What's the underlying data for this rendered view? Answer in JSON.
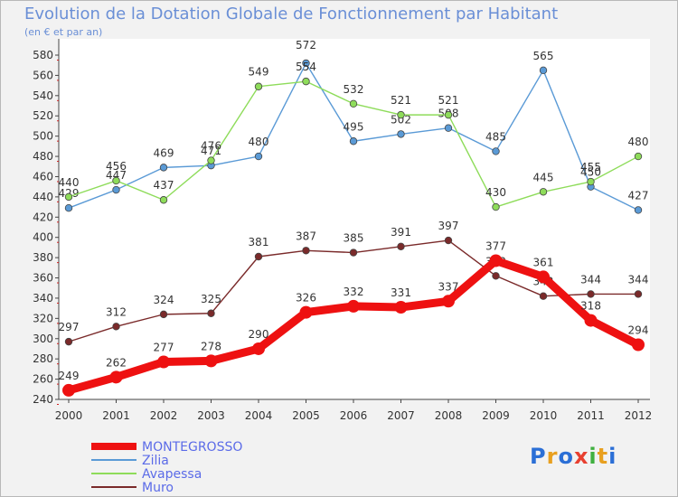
{
  "title": "Evolution de la Dotation Globale de Fonctionnement par Habitant",
  "subtitle": "(en € et par an)",
  "logo": {
    "text": "Proxiti",
    "letters": [
      "P",
      "r",
      "o",
      "x",
      "i",
      "t",
      "i"
    ],
    "colors": [
      "#2b6fd6",
      "#e8a020",
      "#2b6fd6",
      "#e84030",
      "#40b040",
      "#e8a020",
      "#2b6fd6"
    ]
  },
  "chart_data": {
    "type": "line",
    "x": [
      "2000",
      "2001",
      "2002",
      "2003",
      "2004",
      "2005",
      "2006",
      "2007",
      "2008",
      "2009",
      "2010",
      "2011",
      "2012"
    ],
    "ylim": [
      240,
      580
    ],
    "yticks": [
      240,
      260,
      280,
      300,
      320,
      340,
      360,
      380,
      400,
      420,
      440,
      460,
      480,
      500,
      520,
      540,
      560,
      580
    ],
    "grid": false,
    "legend_position": "bottom-left",
    "series": [
      {
        "name": "MONTEGROSSO",
        "color": "#ee1111",
        "values": [
          249,
          262,
          277,
          278,
          290,
          326,
          332,
          331,
          337,
          377,
          361,
          318,
          294
        ]
      },
      {
        "name": "Zilia",
        "color": "#5a9ad6",
        "values": [
          429,
          447,
          469,
          471,
          480,
          572,
          495,
          502,
          508,
          485,
          565,
          450,
          427
        ]
      },
      {
        "name": "Avapessa",
        "color": "#8edc5a",
        "values": [
          440,
          456,
          437,
          476,
          549,
          554,
          532,
          521,
          521,
          430,
          445,
          455,
          480
        ]
      },
      {
        "name": "Muro",
        "color": "#7a2a2a",
        "values": [
          297,
          312,
          324,
          325,
          381,
          387,
          385,
          391,
          397,
          362,
          342,
          344,
          344
        ]
      }
    ]
  }
}
